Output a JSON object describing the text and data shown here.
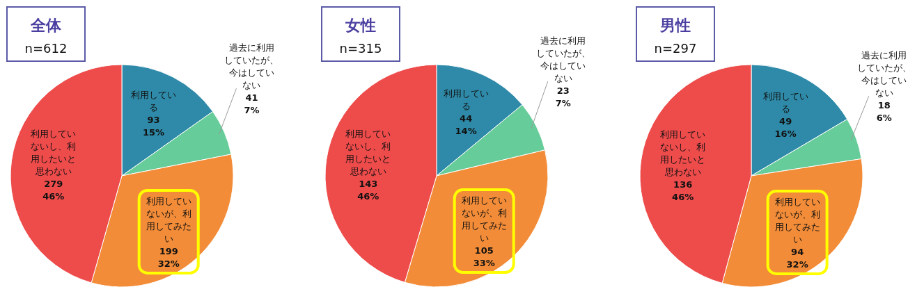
{
  "chart_data": [
    {
      "type": "pie",
      "title": "全体",
      "subtitle": "n=612",
      "categories": [
        "利用している",
        "過去に利用していたが、今はしていない",
        "利用していないが、利用してみたい",
        "利用していないし、利用したいと思わない"
      ],
      "values": [
        93,
        41,
        199,
        279
      ],
      "value_labels": [
        "93\n15%",
        "41\n7%",
        "199\n32%",
        "279\n46%"
      ],
      "colors": [
        "#2e8aa8",
        "#66cc99",
        "#f28c38",
        "#ee4b4b"
      ]
    },
    {
      "type": "pie",
      "title": "女性",
      "subtitle": "n=315",
      "categories": [
        "利用している",
        "過去に利用していたが、今はしていない",
        "利用していないが、利用してみたい",
        "利用していないし、利用したいと思わない"
      ],
      "values": [
        44,
        23,
        105,
        143
      ],
      "value_labels": [
        "44\n14%",
        "23\n7%",
        "105\n33%",
        "143\n46%"
      ],
      "colors": [
        "#2e8aa8",
        "#66cc99",
        "#f28c38",
        "#ee4b4b"
      ]
    },
    {
      "type": "pie",
      "title": "男性",
      "subtitle": "n=297",
      "categories": [
        "利用している",
        "過去に利用していたが、今はしていない",
        "利用していないが、利用してみたい",
        "利用していないし、利用したいと思わない"
      ],
      "values": [
        49,
        18,
        94,
        136
      ],
      "value_labels": [
        "49\n16%",
        "18\n6%",
        "94\n32%",
        "136\n46%"
      ],
      "colors": [
        "#2e8aa8",
        "#66cc99",
        "#f28c38",
        "#ee4b4b"
      ]
    }
  ]
}
